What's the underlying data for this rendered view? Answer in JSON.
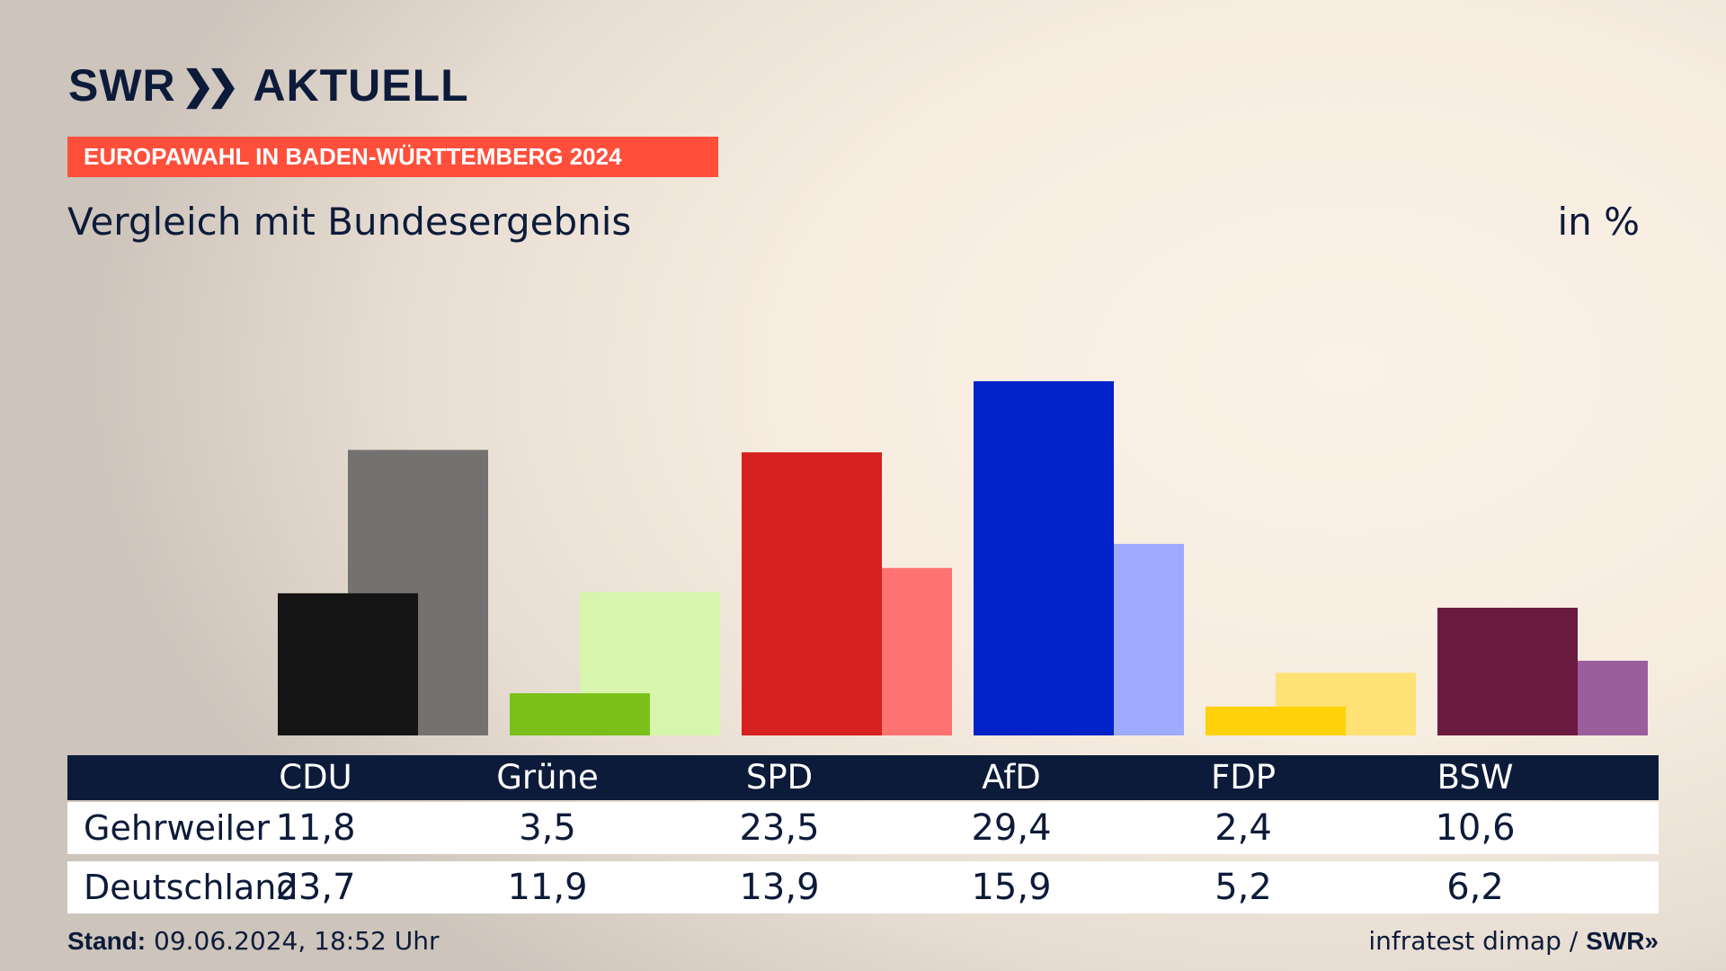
{
  "brand": {
    "swr": "SWR",
    "arrows": "»",
    "aktuell": "AKTUELL"
  },
  "banner": "EUROPAWAHL IN BADEN-WÜRTTEMBERG 2024",
  "subtitle": "Vergleich mit Bundesergebnis",
  "unit": "in %",
  "colors": {
    "banner": "#ff4f3b",
    "navy": "#0d1b3a"
  },
  "chart_data": {
    "type": "bar",
    "categories": [
      "CDU",
      "Grüne",
      "SPD",
      "AfD",
      "FDP",
      "BSW"
    ],
    "series": [
      {
        "name": "Gehrweiler",
        "values": [
          11.8,
          3.5,
          23.5,
          29.4,
          2.4,
          10.6
        ],
        "colors": [
          "#141414",
          "#7bbf1a",
          "#d72020",
          "#0022c8",
          "#ffd10a",
          "#6b1a40"
        ]
      },
      {
        "name": "Deutschland",
        "values": [
          23.7,
          11.9,
          13.9,
          15.9,
          5.2,
          6.2
        ],
        "colors": [
          "#747270",
          "#d8f5ad",
          "#ff7272",
          "#9eabff",
          "#ffe275",
          "#9b5e9c"
        ]
      }
    ],
    "unit": "%"
  },
  "table": {
    "headers": [
      "CDU",
      "Grüne",
      "SPD",
      "AfD",
      "FDP",
      "BSW"
    ],
    "rows": [
      {
        "label": "Gehrweiler",
        "values": [
          "11,8",
          "3,5",
          "23,5",
          "29,4",
          "2,4",
          "10,6"
        ]
      },
      {
        "label": "Deutschland",
        "values": [
          "23,7",
          "11,9",
          "13,9",
          "15,9",
          "5,2",
          "6,2"
        ]
      }
    ]
  },
  "footer": {
    "stand_label": "Stand:",
    "stand_value": "09.06.2024, 18:52 Uhr",
    "source": "infratest dimap / ",
    "source_logo": "SWR»"
  }
}
